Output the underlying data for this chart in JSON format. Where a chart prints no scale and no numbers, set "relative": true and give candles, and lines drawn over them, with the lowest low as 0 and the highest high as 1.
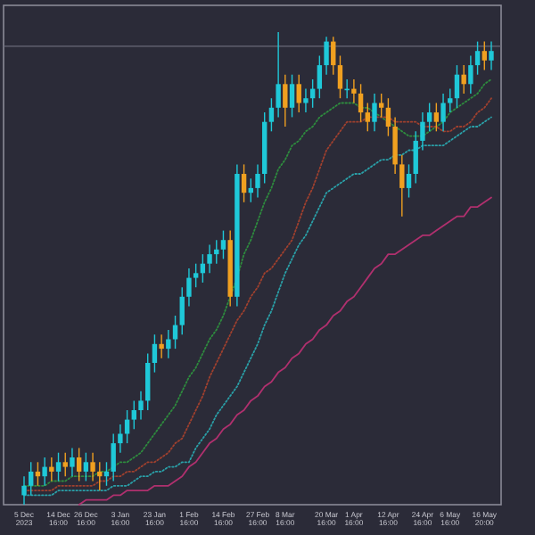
{
  "chart_data": {
    "type": "candlestick",
    "relative": true,
    "categories": [
      "5 Dec 2023",
      null,
      null,
      null,
      null,
      "14 Dec 16:00",
      null,
      null,
      null,
      "26 Dec 16:00",
      null,
      null,
      null,
      null,
      "3 Jan 16:00",
      null,
      null,
      null,
      null,
      "23 Jan 16:00",
      null,
      null,
      null,
      null,
      "1 Feb 16:00",
      null,
      null,
      null,
      null,
      "14 Feb 16:00",
      null,
      null,
      null,
      null,
      "27 Feb 16:00",
      null,
      null,
      null,
      "8 Mar 16:00",
      null,
      null,
      null,
      null,
      null,
      "20 Mar 16:00",
      null,
      null,
      null,
      "1 Apr 16:00",
      null,
      null,
      null,
      null,
      "12 Apr 16:00",
      null,
      null,
      null,
      null,
      "24 Apr 16:00",
      null,
      null,
      null,
      "6 May 16:00",
      null,
      null,
      null,
      null,
      "16 May 20:00",
      null
    ],
    "ohlc": [
      [
        0.02,
        0.06,
        0,
        0.04
      ],
      [
        0.04,
        0.09,
        0.02,
        0.07
      ],
      [
        0.07,
        0.09,
        0.04,
        0.06
      ],
      [
        0.06,
        0.1,
        0.04,
        0.08
      ],
      [
        0.08,
        0.1,
        0.05,
        0.07
      ],
      [
        0.07,
        0.11,
        0.05,
        0.09
      ],
      [
        0.09,
        0.11,
        0.06,
        0.08
      ],
      [
        0.08,
        0.12,
        0.06,
        0.1
      ],
      [
        0.1,
        0.12,
        0.05,
        0.07
      ],
      [
        0.07,
        0.11,
        0.05,
        0.09
      ],
      [
        0.09,
        0.11,
        0.05,
        0.07
      ],
      [
        0.07,
        0.09,
        0.03,
        0.06
      ],
      [
        0.06,
        0.09,
        0.04,
        0.07
      ],
      [
        0.07,
        0.15,
        0.05,
        0.13
      ],
      [
        0.13,
        0.17,
        0.11,
        0.15
      ],
      [
        0.15,
        0.2,
        0.13,
        0.18
      ],
      [
        0.18,
        0.22,
        0.16,
        0.2
      ],
      [
        0.2,
        0.24,
        0.18,
        0.22
      ],
      [
        0.22,
        0.32,
        0.2,
        0.3
      ],
      [
        0.3,
        0.36,
        0.28,
        0.34
      ],
      [
        0.34,
        0.36,
        0.31,
        0.33
      ],
      [
        0.33,
        0.37,
        0.31,
        0.35
      ],
      [
        0.35,
        0.4,
        0.33,
        0.38
      ],
      [
        0.38,
        0.46,
        0.36,
        0.44
      ],
      [
        0.44,
        0.5,
        0.42,
        0.48
      ],
      [
        0.48,
        0.51,
        0.46,
        0.49
      ],
      [
        0.49,
        0.53,
        0.47,
        0.51
      ],
      [
        0.51,
        0.55,
        0.49,
        0.53
      ],
      [
        0.53,
        0.56,
        0.51,
        0.54
      ],
      [
        0.54,
        0.58,
        0.52,
        0.56
      ],
      [
        0.56,
        0.58,
        0.42,
        0.44
      ],
      [
        0.44,
        0.72,
        0.42,
        0.7
      ],
      [
        0.7,
        0.72,
        0.64,
        0.66
      ],
      [
        0.66,
        0.69,
        0.64,
        0.67
      ],
      [
        0.67,
        0.72,
        0.65,
        0.7
      ],
      [
        0.7,
        0.83,
        0.68,
        0.81
      ],
      [
        0.81,
        0.86,
        0.79,
        0.84
      ],
      [
        0.84,
        1,
        0.82,
        0.89
      ],
      [
        0.89,
        0.91,
        0.8,
        0.84
      ],
      [
        0.84,
        0.91,
        0.82,
        0.89
      ],
      [
        0.89,
        0.91,
        0.83,
        0.85
      ],
      [
        0.85,
        0.88,
        0.83,
        0.86
      ],
      [
        0.86,
        0.9,
        0.84,
        0.88
      ],
      [
        0.88,
        0.95,
        0.86,
        0.93
      ],
      [
        0.93,
        0.99,
        0.91,
        0.98
      ],
      [
        0.98,
        0.99,
        0.91,
        0.93
      ],
      [
        0.93,
        0.95,
        0.86,
        0.88
      ],
      [
        0.88,
        0.9,
        0.86,
        0.88
      ],
      [
        0.88,
        0.9,
        0.85,
        0.87
      ],
      [
        0.87,
        0.89,
        0.81,
        0.83
      ],
      [
        0.83,
        0.85,
        0.79,
        0.81
      ],
      [
        0.81,
        0.87,
        0.79,
        0.85
      ],
      [
        0.85,
        0.87,
        0.82,
        0.84
      ],
      [
        0.84,
        0.86,
        0.78,
        0.8
      ],
      [
        0.8,
        0.82,
        0.7,
        0.72
      ],
      [
        0.72,
        0.74,
        0.61,
        0.67
      ],
      [
        0.67,
        0.72,
        0.65,
        0.7
      ],
      [
        0.7,
        0.79,
        0.68,
        0.77
      ],
      [
        0.77,
        0.83,
        0.75,
        0.81
      ],
      [
        0.81,
        0.85,
        0.79,
        0.83
      ],
      [
        0.83,
        0.85,
        0.79,
        0.81
      ],
      [
        0.81,
        0.87,
        0.79,
        0.85
      ],
      [
        0.85,
        0.88,
        0.83,
        0.86
      ],
      [
        0.86,
        0.93,
        0.84,
        0.91
      ],
      [
        0.91,
        0.93,
        0.87,
        0.89
      ],
      [
        0.89,
        0.95,
        0.87,
        0.93
      ],
      [
        0.93,
        0.98,
        0.91,
        0.96
      ],
      [
        0.96,
        0.98,
        0.92,
        0.94
      ],
      [
        0.94,
        0.98,
        0.92,
        0.96
      ]
    ],
    "series": [
      {
        "type": "line",
        "color": "#2e8b3e",
        "line_style": "dotted",
        "values": [
          0.04,
          0.04,
          0.04,
          0.04,
          0.05,
          0.05,
          0.05,
          0.06,
          0.06,
          0.06,
          0.06,
          0.07,
          0.07,
          0.08,
          0.09,
          0.09,
          0.1,
          0.11,
          0.13,
          0.15,
          0.17,
          0.19,
          0.21,
          0.24,
          0.27,
          0.29,
          0.32,
          0.35,
          0.37,
          0.4,
          0.44,
          0.48,
          0.53,
          0.56,
          0.6,
          0.64,
          0.67,
          0.71,
          0.73,
          0.76,
          0.77,
          0.79,
          0.8,
          0.82,
          0.83,
          0.84,
          0.85,
          0.85,
          0.85,
          0.84,
          0.84,
          0.83,
          0.82,
          0.81,
          0.8,
          0.79,
          0.78,
          0.78,
          0.78,
          0.79,
          0.8,
          0.81,
          0.83,
          0.84,
          0.85,
          0.86,
          0.87,
          0.89,
          0.9
        ]
      },
      {
        "type": "line",
        "color": "#a0402e",
        "line_style": "dotted",
        "values": [
          0.03,
          0.03,
          0.03,
          0.03,
          0.03,
          0.04,
          0.04,
          0.04,
          0.04,
          0.04,
          0.04,
          0.05,
          0.05,
          0.06,
          0.06,
          0.07,
          0.07,
          0.08,
          0.09,
          0.09,
          0.1,
          0.11,
          0.13,
          0.14,
          0.17,
          0.2,
          0.23,
          0.27,
          0.3,
          0.33,
          0.36,
          0.39,
          0.41,
          0.44,
          0.46,
          0.49,
          0.5,
          0.52,
          0.54,
          0.56,
          0.6,
          0.64,
          0.67,
          0.71,
          0.75,
          0.77,
          0.79,
          0.81,
          0.81,
          0.81,
          0.82,
          0.82,
          0.82,
          0.82,
          0.81,
          0.81,
          0.81,
          0.81,
          0.8,
          0.8,
          0.8,
          0.79,
          0.79,
          0.8,
          0.8,
          0.81,
          0.83,
          0.84,
          0.86
        ]
      },
      {
        "type": "line",
        "color": "#2aa0a8",
        "line_style": "dotted",
        "values": [
          0.02,
          0.02,
          0.02,
          0.02,
          0.02,
          0.03,
          0.03,
          0.03,
          0.03,
          0.03,
          0.03,
          0.03,
          0.03,
          0.04,
          0.04,
          0.04,
          0.05,
          0.06,
          0.06,
          0.07,
          0.07,
          0.08,
          0.08,
          0.09,
          0.09,
          0.12,
          0.14,
          0.16,
          0.19,
          0.21,
          0.23,
          0.25,
          0.28,
          0.31,
          0.34,
          0.38,
          0.41,
          0.45,
          0.49,
          0.52,
          0.55,
          0.57,
          0.6,
          0.63,
          0.66,
          0.67,
          0.68,
          0.69,
          0.7,
          0.7,
          0.71,
          0.72,
          0.73,
          0.73,
          0.74,
          0.74,
          0.75,
          0.75,
          0.76,
          0.76,
          0.76,
          0.76,
          0.77,
          0.78,
          0.79,
          0.8,
          0.8,
          0.81,
          0.82
        ]
      },
      {
        "type": "line",
        "color": "#b0306e",
        "line_style": "solid",
        "values": [
          null,
          null,
          null,
          null,
          null,
          null,
          null,
          null,
          0.0,
          0.01,
          0.01,
          0.01,
          0.01,
          0.02,
          0.02,
          0.03,
          0.03,
          0.03,
          0.03,
          0.04,
          0.04,
          0.04,
          0.05,
          0.06,
          0.08,
          0.09,
          0.11,
          0.13,
          0.14,
          0.16,
          0.17,
          0.19,
          0.2,
          0.22,
          0.23,
          0.25,
          0.26,
          0.28,
          0.29,
          0.31,
          0.32,
          0.34,
          0.35,
          0.37,
          0.38,
          0.4,
          0.41,
          0.43,
          0.44,
          0.46,
          0.48,
          0.5,
          0.51,
          0.53,
          0.53,
          0.54,
          0.55,
          0.56,
          0.57,
          0.57,
          0.58,
          0.59,
          0.6,
          0.61,
          0.61,
          0.63,
          0.63,
          0.64,
          0.65
        ]
      }
    ],
    "ref_lines": [
      {
        "axis": "y",
        "value": 0.97,
        "color": "#6a6a78"
      }
    ]
  }
}
